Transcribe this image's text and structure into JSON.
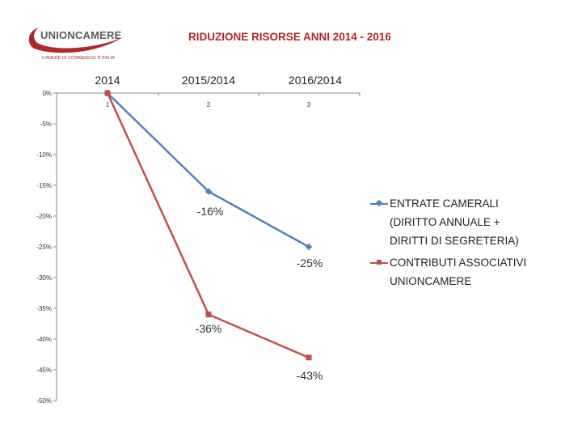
{
  "logo": {
    "name": "UNIONCAMERE",
    "subtitle": "CAMERE DI COMMERCIO D'ITALIA"
  },
  "chart_data": {
    "type": "line",
    "title": "RIDUZIONE RISORSE ANNI 2014 - 2016",
    "categories": [
      "1",
      "2",
      "3"
    ],
    "category_labels": [
      "2014",
      "2015/2014",
      "2016/2014"
    ],
    "ylim": [
      -50,
      0
    ],
    "yticks": [
      0,
      -5,
      -10,
      -15,
      -20,
      -25,
      -30,
      -35,
      -40,
      -45,
      -50
    ],
    "ytick_labels": [
      "0%",
      "-5%",
      "-10%",
      "-15%",
      "-20%",
      "-25%",
      "-30%",
      "-35%",
      "-40%",
      "-45%",
      "-50%"
    ],
    "grid": false,
    "legend_position": "right",
    "series": [
      {
        "name": "ENTRATE CAMERALI (DIRITTO ANNUALE + DIRITTI DI SEGRETERIA)",
        "legend_lines": [
          "ENTRATE CAMERALI",
          "(DIRITTO ANNUALE +",
          "DIRITTI DI SEGRETERIA)"
        ],
        "values": [
          0,
          -16,
          -25
        ],
        "data_labels": [
          "",
          "-16%",
          "-25%"
        ],
        "color": "#4f81bd",
        "marker": "diamond"
      },
      {
        "name": "CONTRIBUTI ASSOCIATIVI UNIONCAMERE",
        "legend_lines": [
          "CONTRIBUTI ASSOCIATIVI",
          "UNIONCAMERE"
        ],
        "values": [
          0,
          -36,
          -43
        ],
        "data_labels": [
          "",
          "-36%",
          "-43%"
        ],
        "color": "#c0504d",
        "marker": "square"
      }
    ]
  }
}
